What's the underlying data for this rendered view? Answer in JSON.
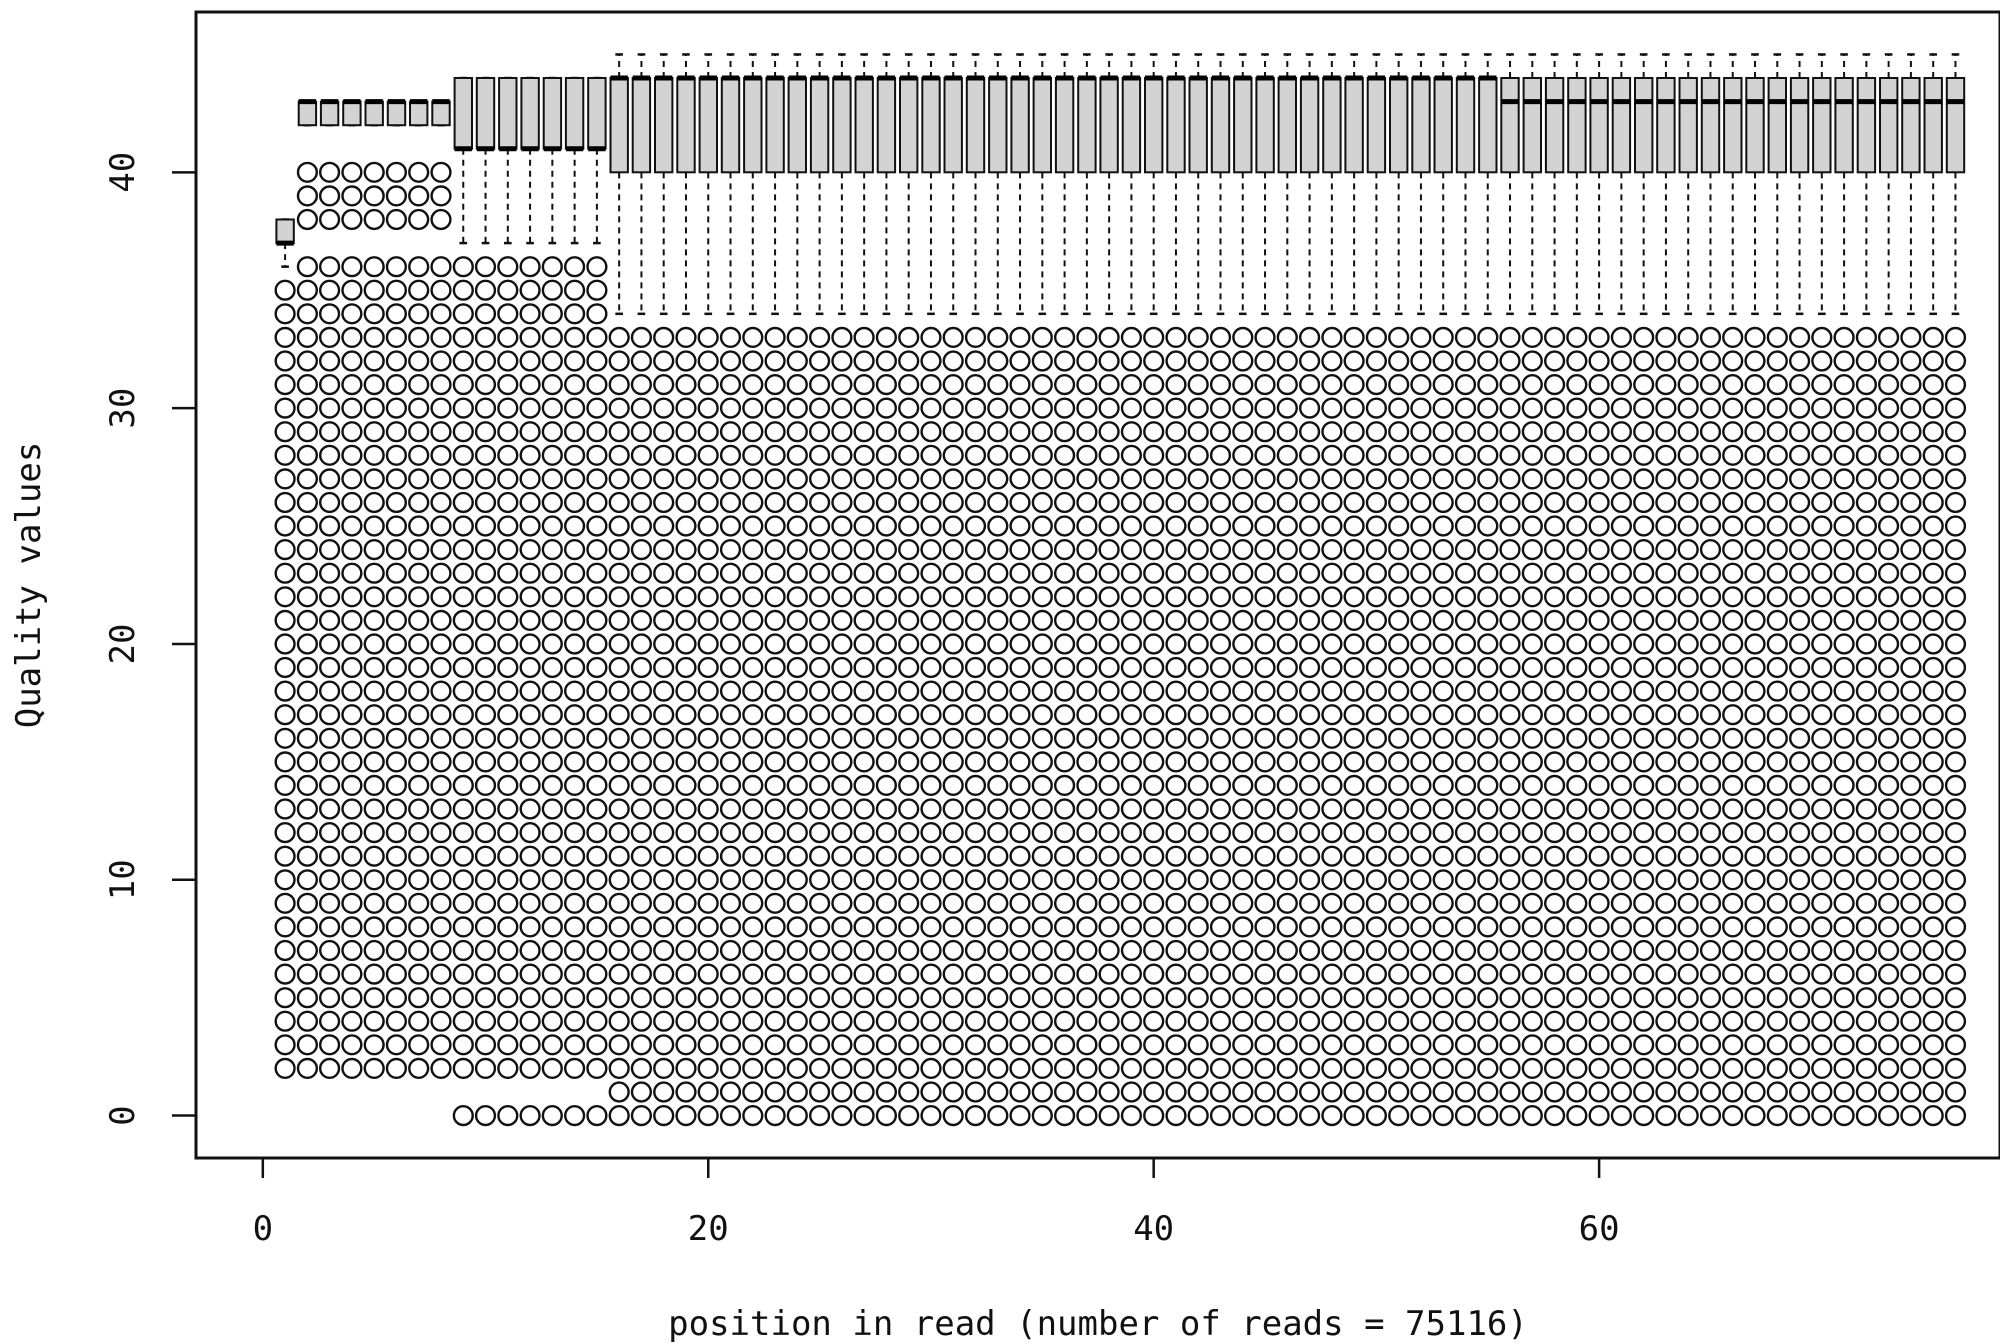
{
  "chart_data": {
    "type": "boxplot",
    "xlabel": "position in read (number of reads = 75116)",
    "ylabel": "Quality values",
    "xlim": [
      -3,
      78
    ],
    "ylim": [
      -1.8,
      46.8
    ],
    "xticks": [
      0,
      20,
      40,
      60
    ],
    "yticks": [
      0,
      10,
      20,
      30,
      40
    ],
    "grid": false,
    "box_fill": "#d3d3d3",
    "positions": [
      1,
      2,
      3,
      4,
      5,
      6,
      7,
      8,
      9,
      10,
      11,
      12,
      13,
      14,
      15,
      16,
      17,
      18,
      19,
      20,
      21,
      22,
      23,
      24,
      25,
      26,
      27,
      28,
      29,
      30,
      31,
      32,
      33,
      34,
      35,
      36,
      37,
      38,
      39,
      40,
      41,
      42,
      43,
      44,
      45,
      46,
      47,
      48,
      49,
      50,
      51,
      52,
      53,
      54,
      55,
      56,
      57,
      58,
      59,
      60,
      61,
      62,
      63,
      64,
      65,
      66,
      67,
      68,
      69,
      70,
      71,
      72,
      73,
      74,
      75,
      76
    ],
    "groups": [
      {
        "pos_from": 1,
        "pos_to": 1,
        "whisker_low": 36,
        "q1": 37,
        "median": 37,
        "q3": 38,
        "whisker_high": 38,
        "outliers": [
          2,
          3,
          4,
          5,
          6,
          7,
          8,
          9,
          10,
          11,
          12,
          13,
          14,
          15,
          16,
          17,
          18,
          19,
          20,
          21,
          22,
          23,
          24,
          25,
          26,
          27,
          28,
          29,
          30,
          31,
          32,
          33,
          34,
          35
        ]
      },
      {
        "pos_from": 2,
        "pos_to": 8,
        "whisker_low": 42,
        "q1": 42,
        "median": 43,
        "q3": 43,
        "whisker_high": 43,
        "outliers": [
          2,
          3,
          4,
          5,
          6,
          7,
          8,
          9,
          10,
          11,
          12,
          13,
          14,
          15,
          16,
          17,
          18,
          19,
          20,
          21,
          22,
          23,
          24,
          25,
          26,
          27,
          28,
          29,
          30,
          31,
          32,
          33,
          34,
          35,
          36,
          38,
          39,
          40
        ]
      },
      {
        "pos_from": 9,
        "pos_to": 15,
        "whisker_low": 37,
        "q1": 41,
        "median": 41,
        "q3": 44,
        "whisker_high": 44,
        "outliers": [
          0,
          2,
          3,
          4,
          5,
          6,
          7,
          8,
          9,
          10,
          11,
          12,
          13,
          14,
          15,
          16,
          17,
          18,
          19,
          20,
          21,
          22,
          23,
          24,
          25,
          26,
          27,
          28,
          29,
          30,
          31,
          32,
          33,
          34,
          35,
          36
        ]
      },
      {
        "pos_from": 16,
        "pos_to": 55,
        "whisker_low": 34,
        "q1": 40,
        "median": 44,
        "q3": 44,
        "whisker_high": 45,
        "outliers": [
          0,
          1,
          2,
          3,
          4,
          5,
          6,
          7,
          8,
          9,
          10,
          11,
          12,
          13,
          14,
          15,
          16,
          17,
          18,
          19,
          20,
          21,
          22,
          23,
          24,
          25,
          26,
          27,
          28,
          29,
          30,
          31,
          32,
          33
        ]
      },
      {
        "pos_from": 56,
        "pos_to": 76,
        "whisker_low": 34,
        "q1": 40,
        "median": 43,
        "q3": 44,
        "whisker_high": 45,
        "outliers": [
          0,
          1,
          2,
          3,
          4,
          5,
          6,
          7,
          8,
          9,
          10,
          11,
          12,
          13,
          14,
          15,
          16,
          17,
          18,
          19,
          20,
          21,
          22,
          23,
          24,
          25,
          26,
          27,
          28,
          29,
          30,
          31,
          32,
          33
        ]
      }
    ]
  }
}
